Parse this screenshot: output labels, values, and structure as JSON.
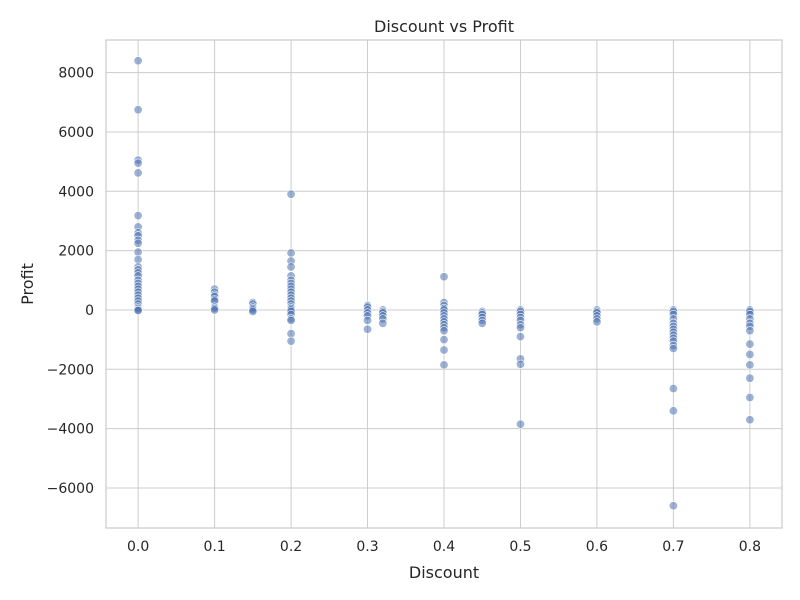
{
  "chart_data": {
    "type": "scatter",
    "title": "Discount vs Profit",
    "xlabel": "Discount",
    "ylabel": "Profit",
    "xlim": [
      -0.042,
      0.842
    ],
    "ylim": [
      -7350,
      9100
    ],
    "xticks": [
      0.0,
      0.1,
      0.2,
      0.3,
      0.4,
      0.5,
      0.6,
      0.7,
      0.8
    ],
    "xtick_labels": [
      "0.0",
      "0.1",
      "0.2",
      "0.3",
      "0.4",
      "0.5",
      "0.6",
      "0.7",
      "0.8"
    ],
    "yticks": [
      -6000,
      -4000,
      -2000,
      0,
      2000,
      4000,
      6000,
      8000
    ],
    "ytick_labels": [
      "−6000",
      "−4000",
      "−2000",
      "0",
      "2000",
      "4000",
      "6000",
      "8000"
    ],
    "grid": true,
    "color": "#4c72b0",
    "series": [
      {
        "points": [
          [
            0.0,
            8400
          ],
          [
            0.0,
            6750
          ],
          [
            0.0,
            5050
          ],
          [
            0.0,
            4950
          ],
          [
            0.0,
            4620
          ],
          [
            0.0,
            3180
          ],
          [
            0.0,
            2800
          ],
          [
            0.0,
            2600
          ],
          [
            0.0,
            2500
          ],
          [
            0.0,
            2350
          ],
          [
            0.0,
            2250
          ],
          [
            0.0,
            1950
          ],
          [
            0.0,
            1700
          ],
          [
            0.0,
            1450
          ],
          [
            0.0,
            1350
          ],
          [
            0.0,
            1250
          ],
          [
            0.0,
            1150
          ],
          [
            0.0,
            1000
          ],
          [
            0.0,
            900
          ],
          [
            0.0,
            800
          ],
          [
            0.0,
            700
          ],
          [
            0.0,
            600
          ],
          [
            0.0,
            500
          ],
          [
            0.0,
            400
          ],
          [
            0.0,
            300
          ],
          [
            0.0,
            200
          ],
          [
            0.0,
            100
          ],
          [
            0.0,
            50
          ],
          [
            0.0,
            0
          ],
          [
            0.0,
            -20
          ],
          [
            0.1,
            700
          ],
          [
            0.1,
            600
          ],
          [
            0.1,
            500
          ],
          [
            0.1,
            450
          ],
          [
            0.1,
            350
          ],
          [
            0.1,
            300
          ],
          [
            0.1,
            100
          ],
          [
            0.1,
            50
          ],
          [
            0.1,
            0
          ],
          [
            0.15,
            250
          ],
          [
            0.15,
            200
          ],
          [
            0.15,
            100
          ],
          [
            0.15,
            50
          ],
          [
            0.15,
            0
          ],
          [
            0.15,
            -50
          ],
          [
            0.2,
            3900
          ],
          [
            0.2,
            1920
          ],
          [
            0.2,
            1650
          ],
          [
            0.2,
            1450
          ],
          [
            0.2,
            1150
          ],
          [
            0.2,
            1000
          ],
          [
            0.2,
            900
          ],
          [
            0.2,
            800
          ],
          [
            0.2,
            700
          ],
          [
            0.2,
            600
          ],
          [
            0.2,
            500
          ],
          [
            0.2,
            400
          ],
          [
            0.2,
            300
          ],
          [
            0.2,
            200
          ],
          [
            0.2,
            100
          ],
          [
            0.2,
            50
          ],
          [
            0.2,
            0
          ],
          [
            0.2,
            -50
          ],
          [
            0.2,
            -150
          ],
          [
            0.2,
            -300
          ],
          [
            0.2,
            -350
          ],
          [
            0.2,
            -800
          ],
          [
            0.2,
            -1050
          ],
          [
            0.3,
            150
          ],
          [
            0.3,
            100
          ],
          [
            0.3,
            0
          ],
          [
            0.3,
            -100
          ],
          [
            0.3,
            -200
          ],
          [
            0.3,
            -350
          ],
          [
            0.3,
            -650
          ],
          [
            0.32,
            0
          ],
          [
            0.32,
            -50
          ],
          [
            0.32,
            -100
          ],
          [
            0.32,
            -200
          ],
          [
            0.32,
            -300
          ],
          [
            0.32,
            -450
          ],
          [
            0.4,
            1120
          ],
          [
            0.4,
            250
          ],
          [
            0.4,
            150
          ],
          [
            0.4,
            50
          ],
          [
            0.4,
            0
          ],
          [
            0.4,
            -100
          ],
          [
            0.4,
            -200
          ],
          [
            0.4,
            -300
          ],
          [
            0.4,
            -400
          ],
          [
            0.4,
            -500
          ],
          [
            0.4,
            -600
          ],
          [
            0.4,
            -700
          ],
          [
            0.4,
            -1000
          ],
          [
            0.4,
            -1350
          ],
          [
            0.4,
            -1850
          ],
          [
            0.45,
            -50
          ],
          [
            0.45,
            -100
          ],
          [
            0.45,
            -150
          ],
          [
            0.45,
            -250
          ],
          [
            0.45,
            -350
          ],
          [
            0.45,
            -450
          ],
          [
            0.5,
            0
          ],
          [
            0.5,
            -50
          ],
          [
            0.5,
            -150
          ],
          [
            0.5,
            -250
          ],
          [
            0.5,
            -350
          ],
          [
            0.5,
            -500
          ],
          [
            0.5,
            -600
          ],
          [
            0.5,
            -900
          ],
          [
            0.5,
            -1650
          ],
          [
            0.5,
            -1830
          ],
          [
            0.5,
            -3850
          ],
          [
            0.6,
            0
          ],
          [
            0.6,
            -50
          ],
          [
            0.6,
            -100
          ],
          [
            0.6,
            -200
          ],
          [
            0.6,
            -300
          ],
          [
            0.6,
            -400
          ],
          [
            0.7,
            0
          ],
          [
            0.7,
            -50
          ],
          [
            0.7,
            -150
          ],
          [
            0.7,
            -300
          ],
          [
            0.7,
            -450
          ],
          [
            0.7,
            -550
          ],
          [
            0.7,
            -650
          ],
          [
            0.7,
            -750
          ],
          [
            0.7,
            -850
          ],
          [
            0.7,
            -950
          ],
          [
            0.7,
            -1050
          ],
          [
            0.7,
            -1200
          ],
          [
            0.7,
            -1300
          ],
          [
            0.7,
            -2650
          ],
          [
            0.7,
            -3400
          ],
          [
            0.7,
            -6600
          ],
          [
            0.8,
            0
          ],
          [
            0.8,
            -50
          ],
          [
            0.8,
            -150
          ],
          [
            0.8,
            -300
          ],
          [
            0.8,
            -450
          ],
          [
            0.8,
            -550
          ],
          [
            0.8,
            -700
          ],
          [
            0.8,
            -1150
          ],
          [
            0.8,
            -1500
          ],
          [
            0.8,
            -1850
          ],
          [
            0.8,
            -2300
          ],
          [
            0.8,
            -2950
          ],
          [
            0.8,
            -3700
          ]
        ]
      }
    ]
  }
}
